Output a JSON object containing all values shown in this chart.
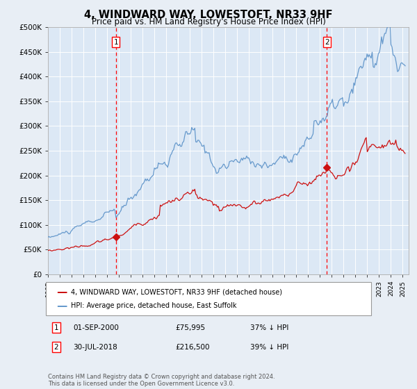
{
  "title": "4, WINDWARD WAY, LOWESTOFT, NR33 9HF",
  "subtitle": "Price paid vs. HM Land Registry's House Price Index (HPI)",
  "background_color": "#e8eef5",
  "plot_bg_color": "#dce8f5",
  "ylim": [
    0,
    500000
  ],
  "yticks": [
    0,
    50000,
    100000,
    150000,
    200000,
    250000,
    300000,
    350000,
    400000,
    450000,
    500000
  ],
  "ytick_labels": [
    "£0",
    "£50K",
    "£100K",
    "£150K",
    "£200K",
    "£250K",
    "£300K",
    "£350K",
    "£400K",
    "£450K",
    "£500K"
  ],
  "hpi_color": "#6699cc",
  "price_color": "#cc1111",
  "marker1_x": 2000.75,
  "marker1_y": 75995,
  "marker2_x": 2018.58,
  "marker2_y": 216500,
  "legend_line1": "4, WINDWARD WAY, LOWESTOFT, NR33 9HF (detached house)",
  "legend_line2": "HPI: Average price, detached house, East Suffolk",
  "note1_label": "1",
  "note1_date": "01-SEP-2000",
  "note1_price": "£75,995",
  "note1_hpi": "37% ↓ HPI",
  "note2_label": "2",
  "note2_date": "30-JUL-2018",
  "note2_price": "£216,500",
  "note2_hpi": "39% ↓ HPI",
  "footer": "Contains HM Land Registry data © Crown copyright and database right 2024.\nThis data is licensed under the Open Government Licence v3.0.",
  "xmin": 1995,
  "xmax": 2025.5
}
